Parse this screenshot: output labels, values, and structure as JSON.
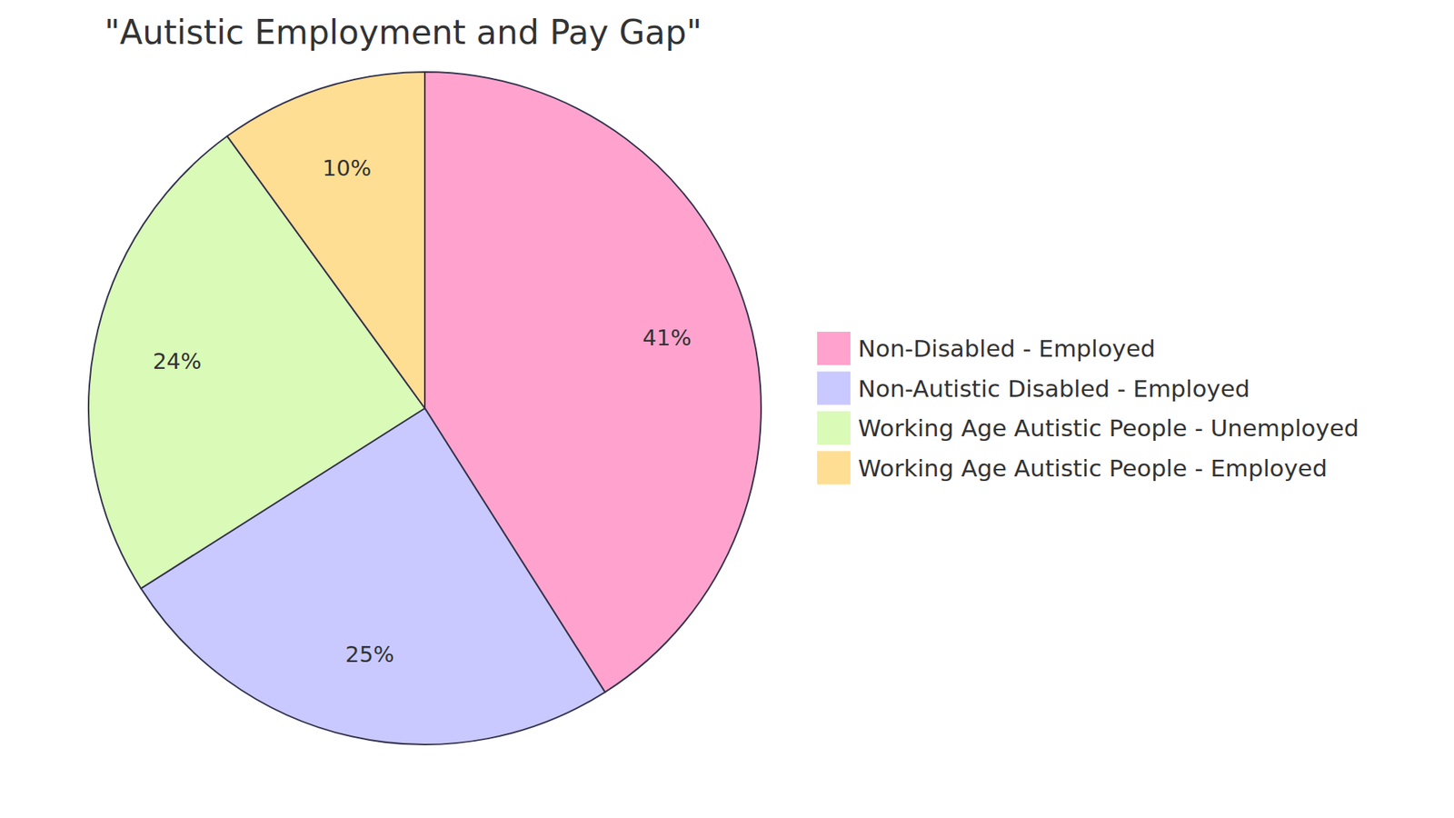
{
  "chart_data": {
    "type": "pie",
    "title": "\"Autistic Employment and Pay Gap\"",
    "categories": [
      "Non-Disabled - Employed",
      "Non-Autistic Disabled - Employed",
      "Working Age Autistic People - Unemployed",
      "Working Age Autistic People - Employed"
    ],
    "values": [
      41,
      25,
      24,
      10
    ],
    "value_labels": [
      "41%",
      "25%",
      "24%",
      "10%"
    ],
    "colors": [
      "#ffa3ce",
      "#c9c9ff",
      "#dafab8",
      "#fede93"
    ],
    "data_labels": true,
    "legend": "right"
  }
}
